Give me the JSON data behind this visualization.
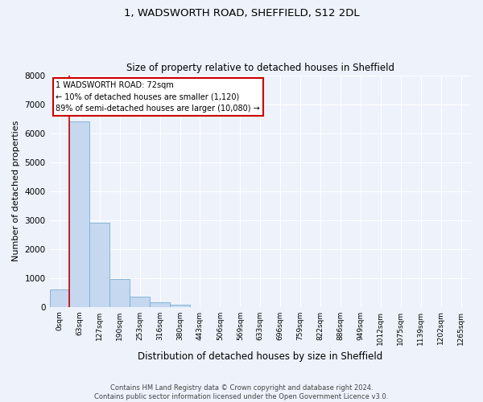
{
  "title_line1": "1, WADSWORTH ROAD, SHEFFIELD, S12 2DL",
  "title_line2": "Size of property relative to detached houses in Sheffield",
  "xlabel": "Distribution of detached houses by size in Sheffield",
  "ylabel": "Number of detached properties",
  "bar_labels": [
    "0sqm",
    "63sqm",
    "127sqm",
    "190sqm",
    "253sqm",
    "316sqm",
    "380sqm",
    "443sqm",
    "506sqm",
    "569sqm",
    "633sqm",
    "696sqm",
    "759sqm",
    "822sqm",
    "886sqm",
    "949sqm",
    "1012sqm",
    "1075sqm",
    "1139sqm",
    "1202sqm",
    "1265sqm"
  ],
  "bar_values": [
    600,
    6400,
    2920,
    960,
    360,
    155,
    80,
    0,
    0,
    0,
    0,
    0,
    0,
    0,
    0,
    0,
    0,
    0,
    0,
    0,
    0
  ],
  "bar_color": "#c5d8f0",
  "bar_edge_color": "#7aadd4",
  "ylim": [
    0,
    8000
  ],
  "yticks": [
    0,
    1000,
    2000,
    3000,
    4000,
    5000,
    6000,
    7000,
    8000
  ],
  "annotation_title": "1 WADSWORTH ROAD: 72sqm",
  "annotation_line1": "← 10% of detached houses are smaller (1,120)",
  "annotation_line2": "89% of semi-detached houses are larger (10,080) →",
  "footer_line1": "Contains HM Land Registry data © Crown copyright and database right 2024.",
  "footer_line2": "Contains public sector information licensed under the Open Government Licence v3.0.",
  "background_color": "#edf2fb",
  "plot_bg_color": "#edf2fb",
  "grid_color": "#ffffff",
  "annotation_box_color": "#ffffff",
  "annotation_box_edge": "#cc0000",
  "property_line_color": "#cc0000",
  "property_line_xbin": 0.5
}
